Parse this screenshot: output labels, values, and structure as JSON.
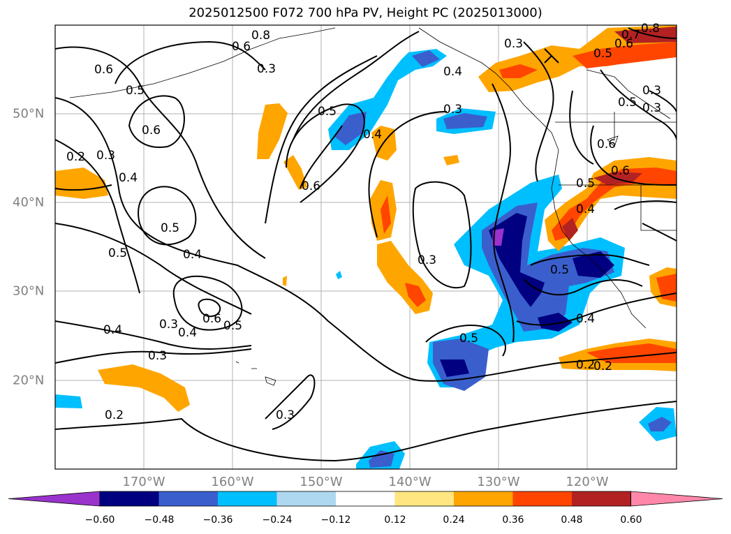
{
  "title": "2025012500 F072 700 hPa PV, Height PC (2025013000)",
  "lon_labels": [
    "170°W",
    "160°W",
    "150°W",
    "140°W",
    "130°W",
    "120°W"
  ],
  "lat_labels": [
    "50°N",
    "40°N",
    "30°N",
    "20°N"
  ],
  "colorbar": {
    "colors": [
      "#9933cc",
      "#000080",
      "#3a5fcd",
      "#00bfff",
      "#add8f0",
      "#ffffff",
      "#ffe680",
      "#ffa500",
      "#ff4500",
      "#b22222",
      "#ff88aa"
    ],
    "ticks": [
      "−0.60",
      "−0.48",
      "−0.36",
      "−0.24",
      "−0.12",
      "0.12",
      "0.24",
      "0.36",
      "0.48",
      "0.60"
    ]
  },
  "contour_labels": [
    "0.8",
    "0.6",
    "0.3",
    "0.6",
    "0.5",
    "0.6",
    "0.2",
    "0.3",
    "0.4",
    "0.5",
    "0.6",
    "0.5",
    "0.4",
    "0.3",
    "0.4",
    "0.3",
    "0.5",
    "0.4",
    "0.6",
    "0.5",
    "0.4",
    "0.5",
    "0.3",
    "0.2",
    "0.6",
    "0.5",
    "0.3",
    "0.2",
    "0.3",
    "0.5",
    "0.4",
    "0.2",
    "0.5",
    "0.7",
    "0.6",
    "0.8",
    "0.3",
    "0.3",
    "0.4",
    "0.6",
    "0.4",
    "0.5",
    "0.3"
  ]
}
